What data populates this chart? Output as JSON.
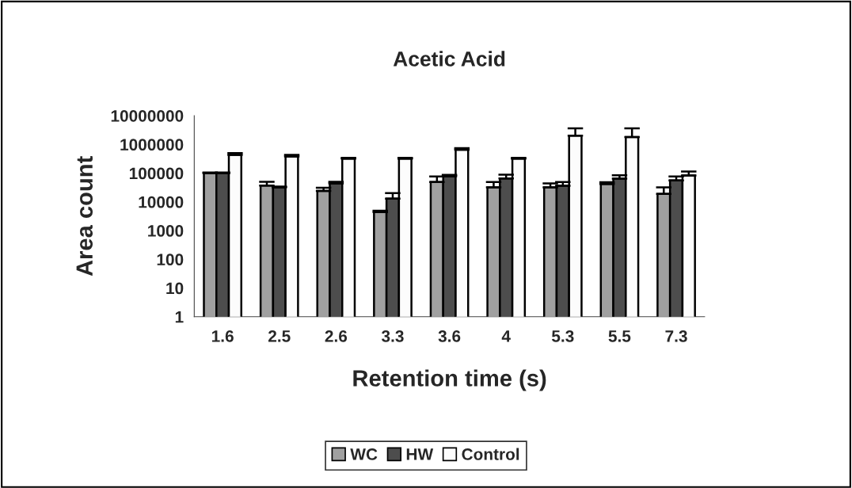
{
  "chart_data": {
    "type": "bar",
    "title": "Acetic Acid",
    "xlabel": "Retention time (s)",
    "ylabel": "Area count",
    "categories": [
      "1.6",
      "2.5",
      "2.6",
      "3.3",
      "3.6",
      "4",
      "5.3",
      "5.5",
      "7.3"
    ],
    "series": [
      {
        "name": "WC",
        "color": "#a0a0a0",
        "values": [
          100000,
          37000,
          24000,
          4400,
          49000,
          32000,
          32000,
          42000,
          19000
        ],
        "errors": [
          5000,
          13000,
          7000,
          500,
          27000,
          17000,
          12000,
          6000,
          13000
        ]
      },
      {
        "name": "HW",
        "color": "#4d4d4d",
        "values": [
          100000,
          32000,
          44000,
          13000,
          77000,
          65000,
          36000,
          64000,
          56000
        ],
        "errors": [
          5000,
          2000,
          6000,
          7000,
          10000,
          23000,
          13000,
          20000,
          20000
        ]
      },
      {
        "name": "Control",
        "color": "#fcfcfc",
        "values": [
          430000,
          380000,
          320000,
          320000,
          650000,
          320000,
          2000000,
          1800000,
          83000
        ],
        "errors": [
          70000,
          50000,
          20000,
          20000,
          90000,
          20000,
          1600000,
          1800000,
          30000
        ]
      }
    ],
    "log": true,
    "ylim": [
      1,
      10000000
    ],
    "yticks": [
      1,
      10,
      100,
      1000,
      10000,
      100000,
      1000000,
      10000000
    ],
    "grid": false,
    "legend": "bottom"
  }
}
